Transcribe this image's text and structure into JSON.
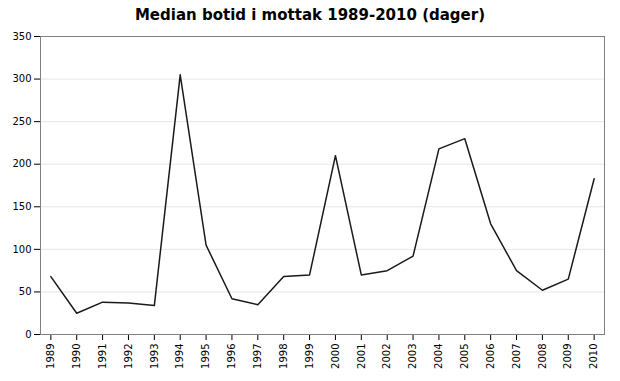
{
  "chart_data": {
    "type": "line",
    "title": "Median botid i mottak 1989-2010 (dager)",
    "x": [
      1989,
      1990,
      1991,
      1992,
      1993,
      1994,
      1995,
      1996,
      1997,
      1998,
      1999,
      2000,
      2001,
      2002,
      2003,
      2004,
      2005,
      2006,
      2007,
      2008,
      2009,
      2010
    ],
    "values": [
      68,
      25,
      38,
      37,
      34,
      305,
      105,
      42,
      35,
      68,
      70,
      210,
      70,
      75,
      92,
      218,
      230,
      130,
      75,
      52,
      65,
      183
    ],
    "color": "#1a1a1a",
    "xlim": [
      1988.6,
      2010.4
    ],
    "xticks": [
      1989,
      1990,
      1991,
      1992,
      1993,
      1994,
      1995,
      1996,
      1997,
      1998,
      1999,
      2000,
      2001,
      2002,
      2003,
      2004,
      2005,
      2006,
      2007,
      2008,
      2009,
      2010
    ],
    "ylim": [
      0,
      350
    ],
    "yticks": [
      0,
      50,
      100,
      150,
      200,
      250,
      300,
      350
    ],
    "grid": true
  }
}
